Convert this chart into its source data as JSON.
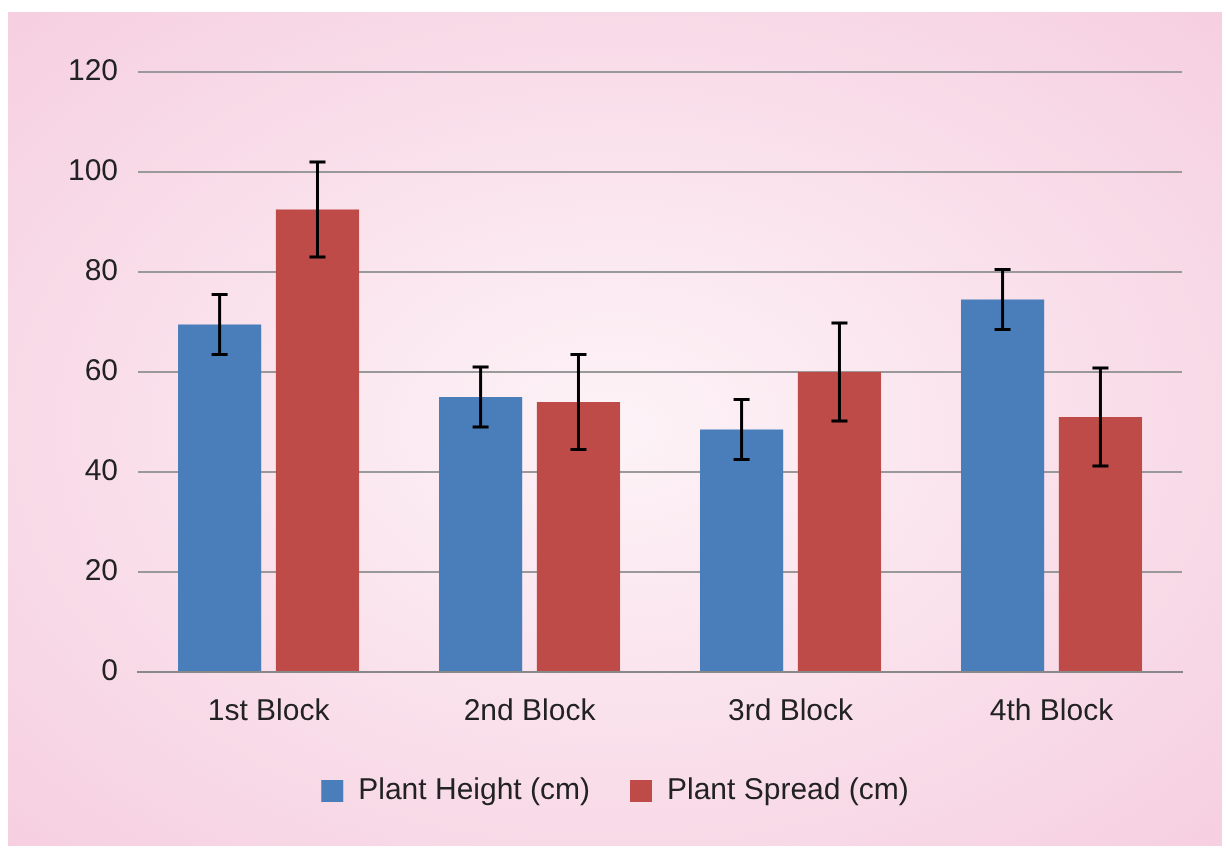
{
  "chart_data": {
    "type": "bar",
    "categories": [
      "1st Block",
      "2nd Block",
      "3rd Block",
      "4th Block"
    ],
    "series": [
      {
        "name": "Plant Height (cm)",
        "color": "#4a7ebb",
        "values": [
          69.5,
          55,
          48.5,
          74.5
        ],
        "errors": [
          6,
          6,
          6,
          6
        ]
      },
      {
        "name": "Plant Spread (cm)",
        "color": "#be4b48",
        "values": [
          92.5,
          54,
          60,
          51
        ],
        "errors": [
          9.5,
          9.5,
          9.8,
          9.8
        ]
      }
    ],
    "ylim": [
      0,
      120
    ],
    "yticks": [
      0,
      20,
      40,
      60,
      80,
      100,
      120
    ],
    "grid": "y",
    "legend": "bottom"
  }
}
